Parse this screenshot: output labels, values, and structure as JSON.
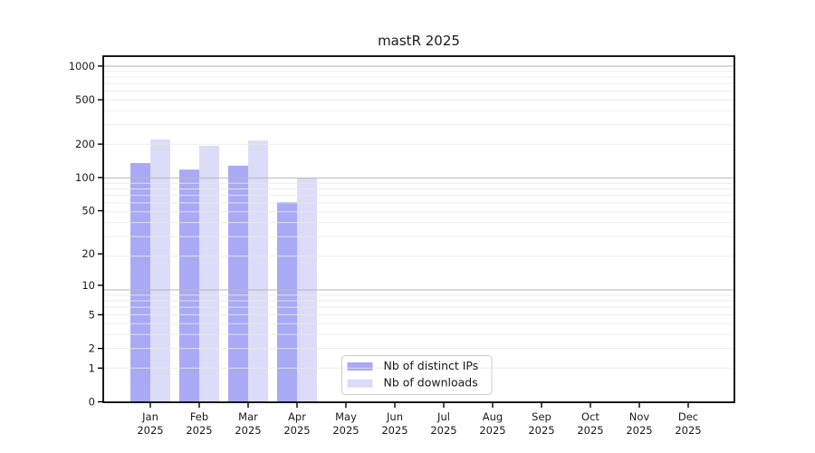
{
  "figure": {
    "background": "#ffffff",
    "frame_color": "#000000",
    "tick_label_color": "#1a1a1a",
    "major_grid_color": "#b9b9b9",
    "minor_grid_color": "#e9e9e9",
    "legend_frame_border": "#cccccc",
    "legend_frame_fill": "rgba(255,255,255,0.8)"
  },
  "chart_data": {
    "type": "bar",
    "title": "mastR 2025",
    "categories": [
      "Jan",
      "Feb",
      "Mar",
      "Apr",
      "May",
      "Jun",
      "Jul",
      "Aug",
      "Sep",
      "Oct",
      "Nov",
      "Dec"
    ],
    "x_year_label": "2025",
    "series": [
      {
        "name": "Nb of distinct IPs",
        "color": "#a9a9f5",
        "values": [
          135,
          118,
          128,
          60,
          null,
          null,
          null,
          null,
          null,
          null,
          null,
          null
        ]
      },
      {
        "name": "Nb of downloads",
        "color": "#dcdcf8",
        "values": [
          220,
          193,
          215,
          100,
          null,
          null,
          null,
          null,
          null,
          null,
          null,
          null
        ]
      }
    ],
    "y_ticks": [
      0,
      1,
      2,
      5,
      10,
      20,
      50,
      100,
      200,
      500,
      1000
    ],
    "y_scale": "log10(v+1)",
    "ylim": [
      0,
      1227
    ],
    "grid": true,
    "grid_on_top": true,
    "legend_position": "lower-center-left",
    "legend": [
      "Nb of distinct IPs",
      "Nb of downloads"
    ]
  }
}
